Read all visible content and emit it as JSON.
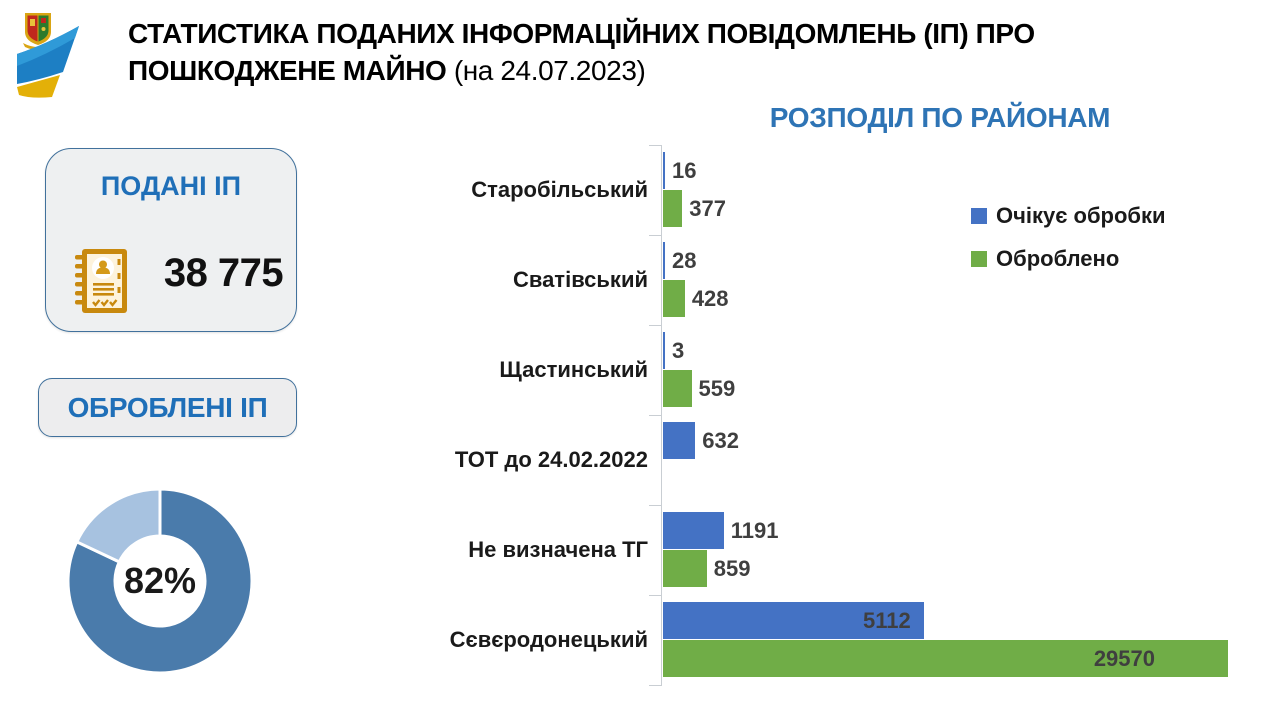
{
  "header": {
    "title_line1": "СТАТИСТИКА ПОДАНИХ ІНФОРМАЦІЙНИХ ПОВІДОМЛЕНЬ (ІП) ПРО",
    "title_line2_bold": "ПОШКОДЖЕНЕ МАЙНО",
    "title_line2_date": "(на 24.07.2023)"
  },
  "icons": {
    "logo": "luhansk-oblast-emblem-flag-logo",
    "submitted_card_icon": "id-document-checklist-icon",
    "legend_pending_swatch": "blue-square-icon",
    "legend_processed_swatch": "green-square-icon"
  },
  "colors": {
    "accent_blue_titles": "#1f6fb8",
    "chart_title_blue": "#2e74b5",
    "bar_pending": "#4472c4",
    "bar_processed": "#70ad47",
    "donut_main": "#4a7bab",
    "donut_remainder": "#a7c2e0",
    "value_label_gray": "#3f3f3f",
    "axis_gray": "#c9ced3",
    "icon_gold": "#c8890e"
  },
  "cards": {
    "submitted": {
      "title": "ПОДАНІ ІП",
      "value": "38 775"
    },
    "processed": {
      "title": "ОБРОБЛЕНІ ІП",
      "percent_label": "82%"
    }
  },
  "chart_data": [
    {
      "type": "pie",
      "subtype": "donut",
      "title": "ОБРОБЛЕНІ ІП",
      "center_label": "82%",
      "segments": [
        {
          "value": 82,
          "color": "#4a7bab"
        },
        {
          "value": 18,
          "color": "#a7c2e0"
        }
      ],
      "start_angle_deg": 0,
      "direction": "clockwise"
    },
    {
      "type": "bar",
      "orientation": "horizontal",
      "title": "РОЗПОДІЛ ПО РАЙОНАМ",
      "categories": [
        "Старобільський",
        "Сватівський",
        "Щастинський",
        "ТОТ до 24.02.2022",
        "Не визначена ТГ",
        "Сєвєродонецький"
      ],
      "series": [
        {
          "name": "Очікує обробки",
          "color": "#4472c4",
          "values": [
            16,
            28,
            3,
            632,
            1191,
            5112
          ]
        },
        {
          "name": "Оброблено",
          "color": "#70ad47",
          "values": [
            377,
            428,
            559,
            null,
            859,
            29570
          ]
        }
      ],
      "data_labels": true,
      "legend_position": "right",
      "gridlines": false,
      "longest_bar_clipped_at_axis_max": true
    }
  ]
}
